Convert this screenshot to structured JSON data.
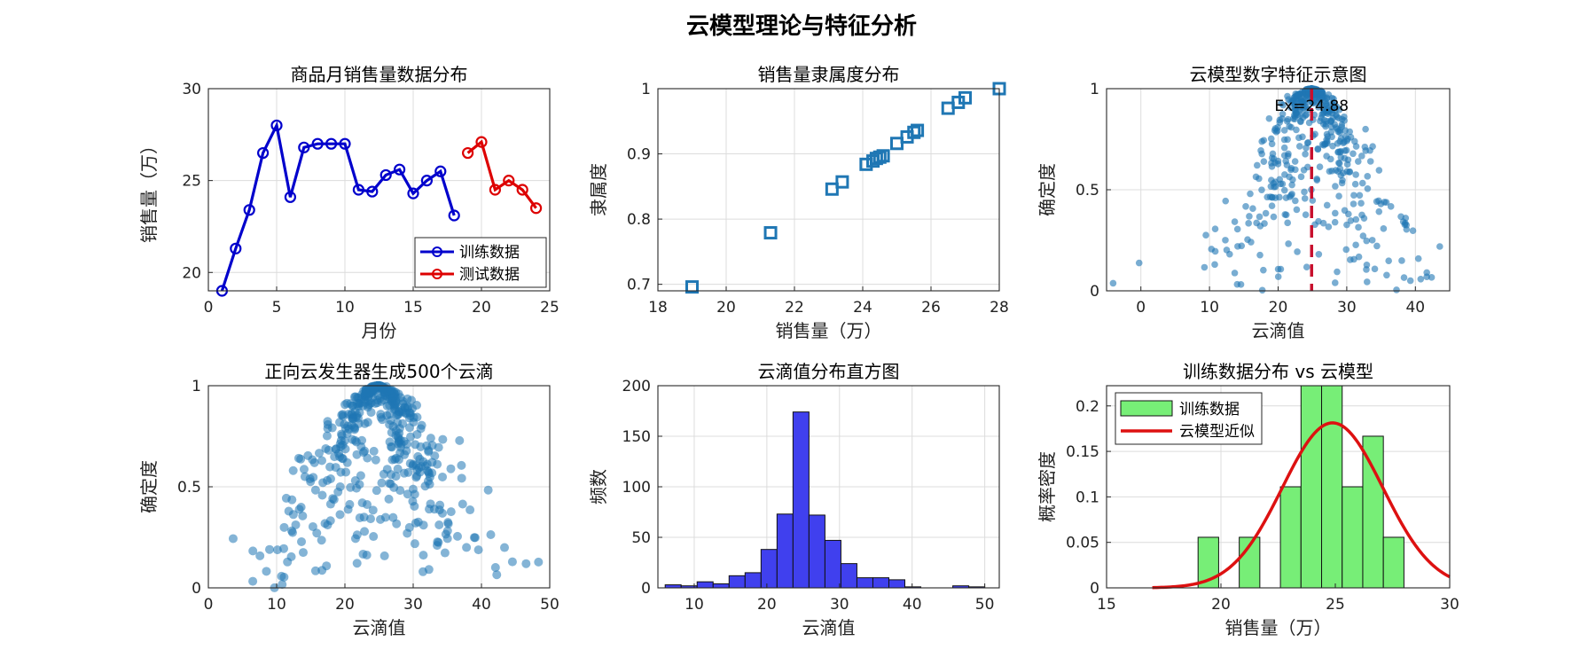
{
  "figure_title": "云模型理论与特征分析",
  "chart_data": [
    {
      "type": "line",
      "title": "商品月销售量数据分布",
      "xlabel": "月份",
      "ylabel": "销售量（万）",
      "xlim": [
        0,
        25
      ],
      "ylim": [
        19,
        30
      ],
      "xticks": [
        0,
        5,
        10,
        15,
        20,
        25
      ],
      "yticks": [
        20,
        25,
        30
      ],
      "grid": true,
      "legend": "bottom-right",
      "series": [
        {
          "name": "训练数据",
          "color": "#0000cc",
          "x": [
            1,
            2,
            3,
            4,
            5,
            6,
            7,
            8,
            9,
            10,
            11,
            12,
            13,
            14,
            15,
            16,
            17,
            18
          ],
          "y": [
            19.0,
            21.3,
            23.4,
            26.5,
            28.0,
            24.1,
            26.8,
            27.0,
            27.0,
            27.0,
            24.5,
            24.4,
            25.3,
            25.6,
            24.3,
            25.0,
            25.5,
            23.1
          ]
        },
        {
          "name": "测试数据",
          "color": "#dd0000",
          "x": [
            19,
            20,
            21,
            22,
            23,
            24
          ],
          "y": [
            26.5,
            27.1,
            24.5,
            25.0,
            24.5,
            23.5
          ]
        }
      ]
    },
    {
      "type": "scatter",
      "title": "销售量隶属度分布",
      "xlabel": "销售量（万）",
      "ylabel": "隶属度",
      "xlim": [
        18,
        28
      ],
      "ylim": [
        0.69,
        1.0
      ],
      "xticks": [
        18,
        20,
        22,
        24,
        26,
        28
      ],
      "yticks": [
        0.7,
        0.8,
        0.9,
        1
      ],
      "grid": true,
      "marker": "square",
      "color": "#1f77b4",
      "points": [
        [
          19.0,
          0.696
        ],
        [
          21.3,
          0.779
        ],
        [
          23.1,
          0.846
        ],
        [
          23.4,
          0.857
        ],
        [
          24.1,
          0.884
        ],
        [
          24.3,
          0.889
        ],
        [
          24.4,
          0.893
        ],
        [
          24.5,
          0.895
        ],
        [
          24.6,
          0.897
        ],
        [
          25.0,
          0.916
        ],
        [
          25.3,
          0.926
        ],
        [
          25.5,
          0.933
        ],
        [
          25.6,
          0.936
        ],
        [
          26.5,
          0.97
        ],
        [
          26.8,
          0.979
        ],
        [
          27.0,
          0.986
        ],
        [
          28.0,
          1.0
        ]
      ]
    },
    {
      "type": "scatter",
      "title": "云模型数字特征示意图",
      "xlabel": "云滴值",
      "ylabel": "确定度",
      "xlim": [
        -5,
        45
      ],
      "ylim": [
        0,
        1
      ],
      "xticks": [
        0,
        10,
        20,
        30,
        40
      ],
      "yticks": [
        0,
        0.5,
        1
      ],
      "grid": true,
      "color": "#1f77b4",
      "annotation": "Ex=24.88",
      "ex_line": {
        "x": 24.88,
        "color": "#c8102e"
      },
      "drop_count": 500
    },
    {
      "type": "scatter",
      "title": "正向云发生器生成500个云滴",
      "xlabel": "云滴值",
      "ylabel": "确定度",
      "xlim": [
        0,
        50
      ],
      "ylim": [
        0,
        1
      ],
      "xticks": [
        0,
        10,
        20,
        30,
        40,
        50
      ],
      "yticks": [
        0,
        0.5,
        1
      ],
      "grid": true,
      "color": "#1f77b4",
      "drop_count": 500
    },
    {
      "type": "bar",
      "title": "云滴值分布直方图",
      "xlabel": "云滴值",
      "ylabel": "频数",
      "xlim": [
        5,
        52
      ],
      "ylim": [
        0,
        200
      ],
      "xticks": [
        10,
        20,
        30,
        40,
        50
      ],
      "yticks": [
        0,
        50,
        100,
        150,
        200
      ],
      "grid": true,
      "color": "#4040ee",
      "bin_edges": [
        6,
        8.2,
        10.4,
        12.6,
        14.8,
        17,
        19.2,
        21.4,
        23.6,
        25.8,
        28,
        30.2,
        32.4,
        34.6,
        36.8,
        39,
        41.2,
        43.4,
        45.6,
        47.8,
        50
      ],
      "counts": [
        3,
        2,
        6,
        4,
        12,
        15,
        38,
        73,
        174,
        72,
        47,
        24,
        10,
        10,
        8,
        1,
        0,
        0,
        2,
        1
      ]
    },
    {
      "type": "bar",
      "title": "训练数据分布 vs 云模型",
      "xlabel": "销售量（万）",
      "ylabel": "概率密度",
      "xlim": [
        15,
        30
      ],
      "ylim": [
        0,
        0.2222
      ],
      "xticks": [
        15,
        20,
        25,
        30
      ],
      "yticks": [
        0,
        0.05,
        0.1,
        0.15,
        0.2
      ],
      "ytick_labels": [
        "0",
        "0.05",
        "0.1",
        "0.15",
        "0.2"
      ],
      "grid": true,
      "legend": "top-left",
      "series": [
        {
          "name": "训练数据",
          "color": "#77ee77",
          "bin_edges": [
            19,
            19.9,
            20.8,
            21.7,
            22.6,
            23.5,
            24.4,
            25.3,
            26.2,
            27.1,
            28.0,
            28.9
          ],
          "values": [
            0.0556,
            0,
            0.0556,
            0,
            0.1111,
            0.2222,
            0.2222,
            0.1111,
            0.1667,
            0.0556,
            0
          ]
        },
        {
          "name": "云模型近似",
          "color": "#dd1111",
          "type": "line",
          "mean": 24.88,
          "sd": 2.2
        }
      ]
    }
  ]
}
